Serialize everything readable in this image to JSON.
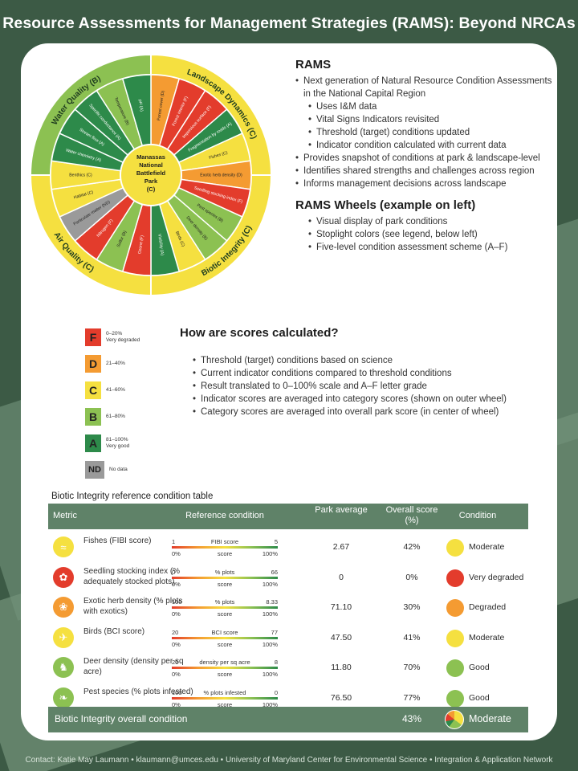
{
  "title": "Resource Assessments for Management Strategies (RAMS): Beyond NRCAs",
  "footer": "Contact: Katie May Laumann • klaumann@umces.edu • University of Maryland Center for Environmental Science • Integration & Application Network",
  "wheel": {
    "center": [
      "Manassas",
      "National",
      "Battlefield",
      "Park",
      "(C)"
    ],
    "categories": [
      {
        "name": "Landscape Dynamics (C)",
        "color": "#f5e040",
        "start": 0,
        "end": 90
      },
      {
        "name": "Biotic Integrity (C)",
        "color": "#f5e040",
        "start": 90,
        "end": 180
      },
      {
        "name": "Air Quality (C)",
        "color": "#f5e040",
        "start": 180,
        "end": 270
      },
      {
        "name": "Water Quality (B)",
        "color": "#8cc152",
        "start": 270,
        "end": 360
      }
    ],
    "segments": [
      {
        "label": "Forest cover (D)",
        "color": "#f49b32"
      },
      {
        "label": "Forest interior (F)",
        "color": "#e33c2c"
      },
      {
        "label": "Impervious surface (F)",
        "color": "#e33c2c"
      },
      {
        "label": "Fragmentation by roads (A)",
        "color": "#2d8a4a"
      },
      {
        "label": "Fishes (C)",
        "color": "#f5e040"
      },
      {
        "label": "Exotic herb density (D)",
        "color": "#f49b32"
      },
      {
        "label": "Seedling stocking index (F)",
        "color": "#e33c2c"
      },
      {
        "label": "Pest species (B)",
        "color": "#8cc152"
      },
      {
        "label": "Deer density (B)",
        "color": "#8cc152"
      },
      {
        "label": "Birds (C)",
        "color": "#f5e040"
      },
      {
        "label": "Visibility (A)",
        "color": "#2d8a4a"
      },
      {
        "label": "Ozone (F)",
        "color": "#e33c2c"
      },
      {
        "label": "Sulfur (B)",
        "color": "#8cc152"
      },
      {
        "label": "Nitrogen (F)",
        "color": "#e33c2c"
      },
      {
        "label": "Particulate matter (ND)",
        "color": "#9a9a9a"
      },
      {
        "label": "Habitat (C)",
        "color": "#f5e040"
      },
      {
        "label": "Benthics (C)",
        "color": "#f5e040"
      },
      {
        "label": "Water chemistry (A)",
        "color": "#2d8a4a"
      },
      {
        "label": "Stream flow (A)",
        "color": "#2d8a4a"
      },
      {
        "label": "Specific conductance (A)",
        "color": "#2d8a4a"
      },
      {
        "label": "Temperature (B)",
        "color": "#8cc152"
      },
      {
        "label": "pH (A)",
        "color": "#2d8a4a"
      }
    ]
  },
  "rams": {
    "heading": "RAMS",
    "bullets": [
      {
        "text": "Next generation of Natural Resource Condition Assessments in the National Capital Region",
        "sub": false
      },
      {
        "text": "Uses I&M data",
        "sub": true
      },
      {
        "text": "Vital Signs Indicators revisited",
        "sub": true
      },
      {
        "text": "Threshold (target) conditions updated",
        "sub": true
      },
      {
        "text": "Indicator condition calculated with current data",
        "sub": true
      },
      {
        "text": "Provides snapshot of conditions at park & landscape-level",
        "sub": false
      },
      {
        "text": "Identifies shared strengths and challenges across region",
        "sub": false
      },
      {
        "text": "Informs management decisions across landscape",
        "sub": false
      }
    ],
    "wheels_heading": "RAMS Wheels (example on left)",
    "wheels_bullets": [
      "Visual display of park conditions",
      "Stoplight colors (see legend, below left)",
      "Five-level condition assessment scheme (A–F)"
    ]
  },
  "legend": [
    {
      "grade": "F",
      "range": "0–20%",
      "desc": "Very degraded",
      "color": "#e33c2c"
    },
    {
      "grade": "D",
      "range": "21–40%",
      "desc": "",
      "color": "#f49b32"
    },
    {
      "grade": "C",
      "range": "41–60%",
      "desc": "",
      "color": "#f5e040"
    },
    {
      "grade": "B",
      "range": "61–80%",
      "desc": "",
      "color": "#8cc152"
    },
    {
      "grade": "A",
      "range": "81–100%",
      "desc": "Very good",
      "color": "#2d8a4a"
    },
    {
      "grade": "ND",
      "range": "No data",
      "desc": "",
      "color": "#9a9a9a"
    }
  ],
  "how": {
    "heading": "How are scores calculated?",
    "bullets": [
      "Threshold (target) conditions based on science",
      "Current indicator conditions compared to threshold conditions",
      "Result translated to 0–100% scale and A–F letter grade",
      "Indicator scores are averaged into category scores (shown on outer wheel)",
      "Category scores are averaged into overall park score (in center of wheel)"
    ]
  },
  "table": {
    "caption": "Biotic Integrity reference condition table",
    "headers": {
      "metric": "Metric",
      "reference": "Reference condition",
      "park": "Park average",
      "overall": "Overall score (%)",
      "condition": "Condition"
    },
    "rows": [
      {
        "metric": "Fishes (FIBI score)",
        "icon": "fish-icon",
        "icon_glyph": "≈",
        "icon_color": "#f5e040",
        "lo": "1",
        "unit": "FIBI score",
        "hi": "5",
        "avg": "2.67",
        "pct": "42%",
        "cond": "Moderate",
        "cond_color": "#f5e040"
      },
      {
        "metric": "Seedling stocking index (% adequately stocked plots)",
        "icon": "seedling-icon",
        "icon_glyph": "✿",
        "icon_color": "#e33c2c",
        "lo": "0",
        "unit": "% plots",
        "hi": "66",
        "avg": "0",
        "pct": "0%",
        "cond": "Very degraded",
        "cond_color": "#e33c2c"
      },
      {
        "metric": "Exotic herb density (% plots with exotics)",
        "icon": "herb-icon",
        "icon_glyph": "❀",
        "icon_color": "#f49b32",
        "lo": "100",
        "unit": "% plots",
        "hi": "8.33",
        "avg": "71.10",
        "pct": "30%",
        "cond": "Degraded",
        "cond_color": "#f49b32"
      },
      {
        "metric": "Birds (BCI score)",
        "icon": "bird-icon",
        "icon_glyph": "✈",
        "icon_color": "#f5e040",
        "lo": "20",
        "unit": "BCI score",
        "hi": "77",
        "avg": "47.50",
        "pct": "41%",
        "cond": "Moderate",
        "cond_color": "#f5e040"
      },
      {
        "metric": "Deer density (density per sq acre)",
        "icon": "deer-icon",
        "icon_glyph": "♞",
        "icon_color": "#8cc152",
        "lo": "20",
        "unit": "density per sq acre",
        "hi": "8",
        "avg": "11.80",
        "pct": "70%",
        "cond": "Good",
        "cond_color": "#8cc152"
      },
      {
        "metric": "Pest species (% plots infested)",
        "icon": "pest-icon",
        "icon_glyph": "❧",
        "icon_color": "#8cc152",
        "lo": "100",
        "unit": "% plots infested",
        "hi": "0",
        "avg": "76.50",
        "pct": "77%",
        "cond": "Good",
        "cond_color": "#8cc152"
      }
    ],
    "scale_lo": "0%",
    "scale_mid": "score",
    "scale_hi": "100%",
    "footer_label": "Biotic Integrity overall condition",
    "footer_pct": "43%",
    "footer_cond": "Moderate"
  }
}
